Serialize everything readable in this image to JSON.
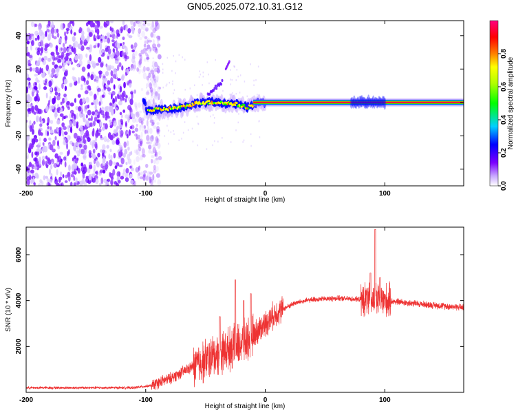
{
  "title": "GN05.2025.072.10.31.G12",
  "chart_data": [
    {
      "type": "heatmap",
      "xlabel": "Height of straight line (km)",
      "ylabel": "Frequency (Hz)",
      "xlim": [
        -200,
        166
      ],
      "ylim": [
        -50,
        49
      ],
      "xticks": [
        -200,
        -100,
        0,
        100
      ],
      "yticks": [
        -40,
        -20,
        0,
        20,
        40
      ],
      "grid": false,
      "colorbar": {
        "label": "Normalized spectral amplitude",
        "range": [
          0,
          1
        ],
        "ticks": [
          0.0,
          0.2,
          0.4,
          0.6,
          0.8
        ],
        "colors": [
          "#ffffff",
          "#7b00ff",
          "#0000ff",
          "#00d0ff",
          "#00ff00",
          "#ffff00",
          "#ff8000",
          "#ff0000",
          "#ff0080"
        ]
      },
      "features": {
        "noise_region_x": [
          -200,
          -100
        ],
        "signal_track": [
          {
            "x": -100,
            "y": -5
          },
          {
            "x": -85,
            "y": -4
          },
          {
            "x": -70,
            "y": -3
          },
          {
            "x": -55,
            "y": 0
          },
          {
            "x": -40,
            "y": 0
          },
          {
            "x": -25,
            "y": -1
          },
          {
            "x": -15,
            "y": -3
          },
          {
            "x": -5,
            "y": 0
          },
          {
            "x": 0,
            "y": 0
          },
          {
            "x": 166,
            "y": 0
          }
        ],
        "carrier_band": {
          "x_start": -10,
          "x_end": 166,
          "y": 0,
          "amplitude": 0.95
        }
      }
    },
    {
      "type": "line",
      "xlabel": "Height of straight line (km)",
      "ylabel": "SNR (10 * v/v)",
      "xlim": [
        -200,
        166
      ],
      "ylim": [
        0,
        7200
      ],
      "xticks": [
        -200,
        -100,
        0,
        100
      ],
      "yticks": [
        2000,
        4000,
        6000
      ],
      "grid": false,
      "series": [
        {
          "color": "#ee3333",
          "points": [
            {
              "x": -200,
              "y": 200
            },
            {
              "x": -150,
              "y": 200
            },
            {
              "x": -110,
              "y": 200
            },
            {
              "x": -95,
              "y": 300
            },
            {
              "x": -80,
              "y": 600
            },
            {
              "x": -65,
              "y": 1000
            },
            {
              "x": -50,
              "y": 1400
            },
            {
              "x": -35,
              "y": 1800
            },
            {
              "x": -20,
              "y": 2100
            },
            {
              "x": -10,
              "y": 2500
            },
            {
              "x": 0,
              "y": 3000
            },
            {
              "x": 10,
              "y": 3500
            },
            {
              "x": 25,
              "y": 3900
            },
            {
              "x": 40,
              "y": 4050
            },
            {
              "x": 60,
              "y": 4100
            },
            {
              "x": 80,
              "y": 4050
            },
            {
              "x": 92,
              "y": 4000
            },
            {
              "x": 100,
              "y": 4000
            },
            {
              "x": 120,
              "y": 3900
            },
            {
              "x": 140,
              "y": 3800
            },
            {
              "x": 166,
              "y": 3700
            }
          ],
          "peaks": [
            {
              "x": -38,
              "y": 3300
            },
            {
              "x": -25,
              "y": 4900
            },
            {
              "x": -18,
              "y": 4000
            },
            {
              "x": -12,
              "y": 4300
            },
            {
              "x": 88,
              "y": 5200
            },
            {
              "x": 92,
              "y": 7100
            },
            {
              "x": 96,
              "y": 5000
            }
          ]
        }
      ]
    }
  ]
}
